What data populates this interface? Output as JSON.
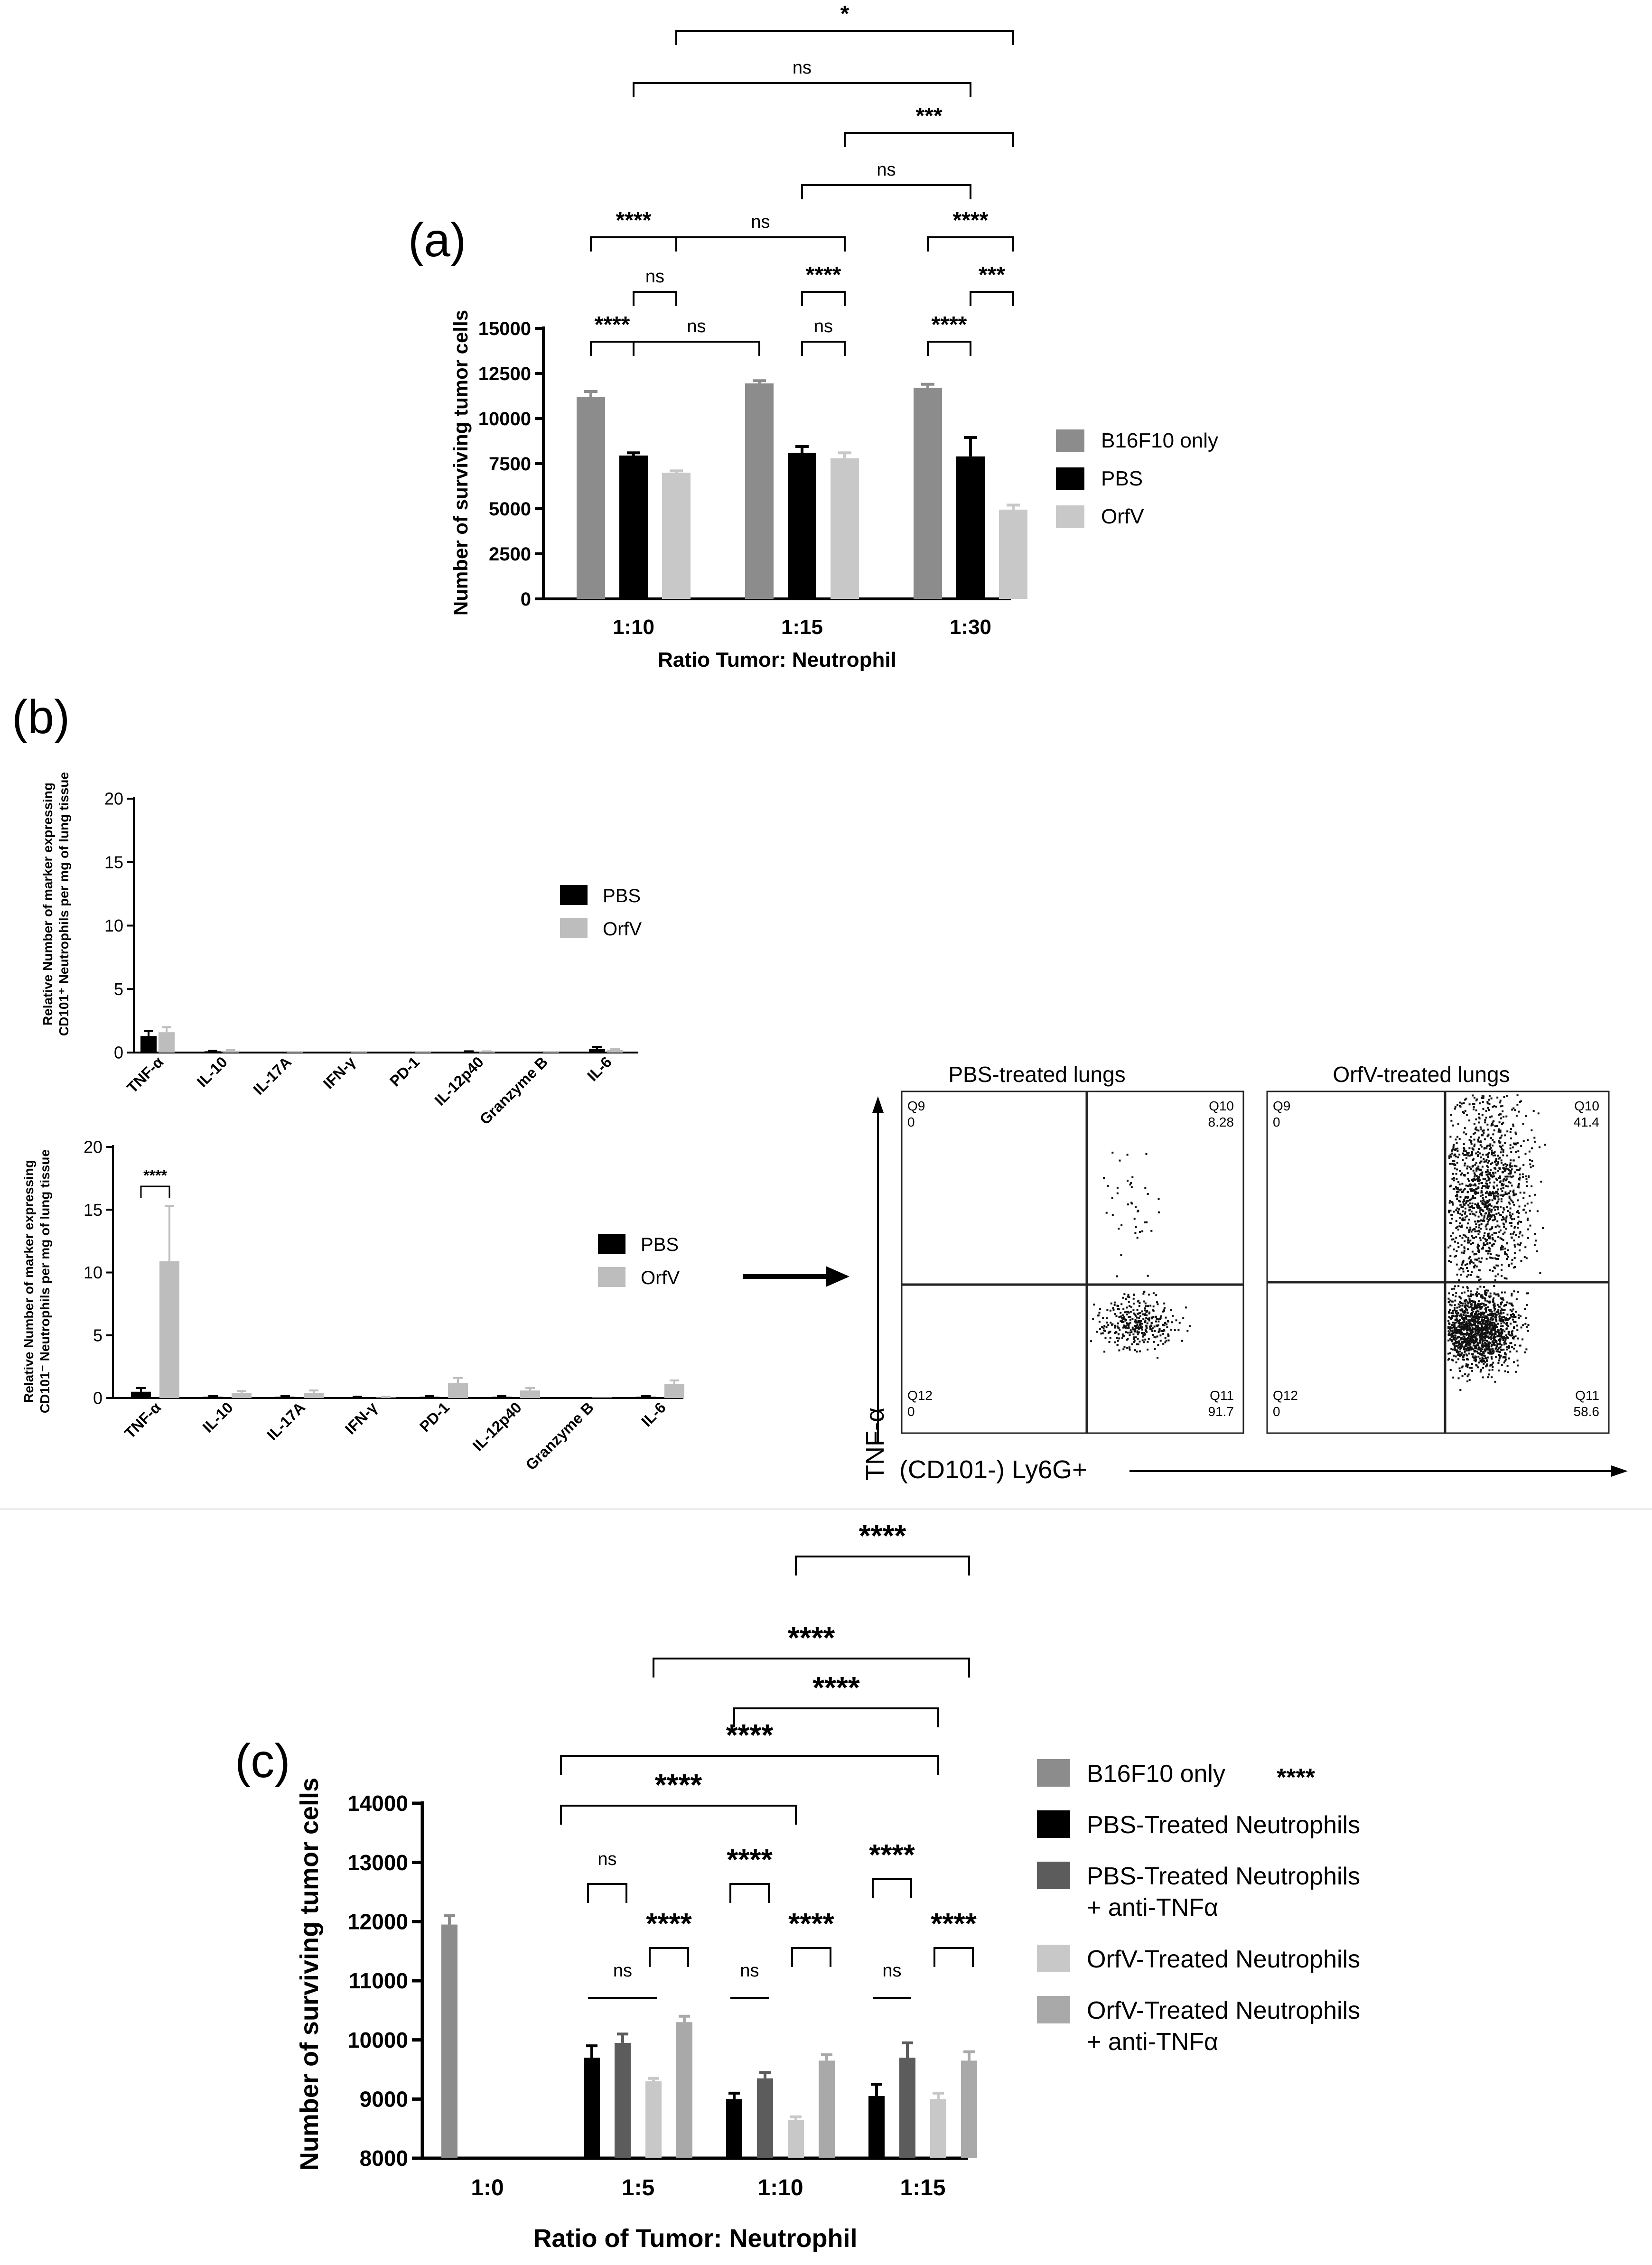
{
  "panels": {
    "a": {
      "panel_label": "(a)",
      "legend": [
        {
          "label": "B16F10 only",
          "color": "#8c8c8c"
        },
        {
          "label": "PBS",
          "color": "#000000"
        },
        {
          "label": "OrfV",
          "color": "#c8c8c8"
        }
      ]
    },
    "b": {
      "panel_label": "(b)",
      "top_legend": [
        {
          "label": "PBS",
          "color": "#000000"
        },
        {
          "label": "OrfV",
          "color": "#bdbdbd"
        }
      ],
      "bottom_legend": [
        {
          "label": "PBS",
          "color": "#000000"
        },
        {
          "label": "OrfV",
          "color": "#bdbdbd"
        }
      ],
      "flow": {
        "left_title": "PBS-treated lungs",
        "right_title": "OrfV-treated lungs",
        "y_axis_label": "TNF-α",
        "x_axis_label": "(CD101-) Ly6G+",
        "left_quadrants": {
          "q9": "Q9",
          "q9v": "0",
          "q10": "Q10",
          "q10v": "8.28",
          "q11": "Q11",
          "q11v": "91.7",
          "q12": "Q12",
          "q12v": "0"
        },
        "right_quadrants": {
          "q9": "Q9",
          "q9v": "0",
          "q10": "Q10",
          "q10v": "41.4",
          "q11": "Q11",
          "q11v": "58.6",
          "q12": "Q12",
          "q12v": "0"
        }
      }
    },
    "c": {
      "panel_label": "(c)",
      "legend": [
        {
          "label": "B16F10 only",
          "label2": "",
          "suffix": "****",
          "color": "#8c8c8c"
        },
        {
          "label": "PBS-Treated Neutrophils",
          "label2": "",
          "suffix": "",
          "color": "#000000"
        },
        {
          "label": "PBS-Treated Neutrophils",
          "label2": "+ anti-TNFα",
          "suffix": "",
          "color": "#5c5c5c"
        },
        {
          "label": "OrfV-Treated Neutrophils",
          "label2": "",
          "suffix": "",
          "color": "#c8c8c8"
        },
        {
          "label": "OrfV-Treated Neutrophils",
          "label2": "+ anti-TNFα",
          "suffix": "",
          "color": "#a9a9a9"
        }
      ]
    }
  },
  "chart_data": [
    {
      "type": "bar",
      "ylabel": "Number of surviving tumor cells",
      "xlabel": "Ratio Tumor: Neutrophil",
      "categories": [
        "1:10",
        "1:15",
        "1:30"
      ],
      "ylim": [
        0,
        15000
      ],
      "yticks": [
        0,
        2500,
        5000,
        7500,
        10000,
        12500,
        15000
      ],
      "series": [
        {
          "name": "B16F10 only",
          "values": [
            11200,
            11950,
            11700
          ],
          "errors": [
            300,
            150,
            200
          ]
        },
        {
          "name": "PBS",
          "values": [
            7950,
            8100,
            7900
          ],
          "errors": [
            150,
            350,
            1050
          ]
        },
        {
          "name": "OrfV",
          "values": [
            7000,
            7800,
            4950
          ],
          "errors": [
            100,
            300,
            250
          ]
        }
      ],
      "annotations": [
        {
          "text": "****",
          "left": [
            0,
            0
          ],
          "right": [
            0,
            1
          ]
        },
        {
          "text": "ns",
          "left": [
            0,
            1
          ],
          "right": [
            1,
            0
          ]
        },
        {
          "text": "ns",
          "left": [
            1,
            1
          ],
          "right": [
            1,
            2
          ]
        },
        {
          "text": "****",
          "left": [
            2,
            0
          ],
          "right": [
            2,
            1
          ]
        },
        {
          "text": "ns",
          "left": [
            0,
            1
          ],
          "right": [
            0,
            2
          ]
        },
        {
          "text": "****",
          "left": [
            1,
            1
          ],
          "right": [
            1,
            2
          ]
        },
        {
          "text": "***",
          "left": [
            2,
            1
          ],
          "right": [
            2,
            2
          ]
        },
        {
          "text": "****",
          "left": [
            0,
            0
          ],
          "right": [
            0,
            2
          ]
        },
        {
          "text": "ns",
          "left": [
            0,
            2
          ],
          "right": [
            1,
            2
          ]
        },
        {
          "text": "****",
          "left": [
            2,
            0
          ],
          "right": [
            2,
            2
          ]
        },
        {
          "text": "ns",
          "left": [
            1,
            1
          ],
          "right": [
            2,
            1
          ]
        },
        {
          "text": "***",
          "left": [
            1,
            2
          ],
          "right": [
            2,
            2
          ]
        },
        {
          "text": "ns",
          "left": [
            0,
            1
          ],
          "right": [
            2,
            1
          ]
        },
        {
          "text": "*",
          "left": [
            0,
            2
          ],
          "right": [
            2,
            2
          ]
        }
      ]
    },
    {
      "type": "bar",
      "ylabel": "Relative Number of marker expressing CD101⁺ Neutrophils per mg of lung tissue",
      "categories": [
        "TNF-α",
        "IL-10",
        "IL-17A",
        "IFN-γ",
        "PD-1",
        "IL-12p40",
        "Granzyme B",
        "IL-6"
      ],
      "ylim": [
        0,
        20
      ],
      "yticks": [
        0,
        5,
        10,
        15,
        20
      ],
      "series": [
        {
          "name": "PBS",
          "values": [
            1.3,
            0.1,
            0.05,
            0.05,
            0.05,
            0.05,
            0.05,
            0.3
          ],
          "errors": [
            0.4,
            0.05,
            0,
            0,
            0,
            0.05,
            0,
            0.15
          ]
        },
        {
          "name": "OrfV",
          "values": [
            1.6,
            0.15,
            0.05,
            0.05,
            0.05,
            0.05,
            0.05,
            0.2
          ],
          "errors": [
            0.4,
            0.05,
            0,
            0,
            0,
            0.05,
            0,
            0.1
          ]
        }
      ]
    },
    {
      "type": "bar",
      "ylabel": "Relative Number of marker expressing CD101⁻ Neutrophils per mg of lung tissue",
      "categories": [
        "TNF-α",
        "IL-10",
        "IL-17A",
        "IFN-γ",
        "PD-1",
        "IL-12p40",
        "Granzyme B",
        "IL-6"
      ],
      "ylim": [
        0,
        20
      ],
      "yticks": [
        0,
        5,
        10,
        15,
        20
      ],
      "series": [
        {
          "name": "PBS",
          "values": [
            0.5,
            0.1,
            0.1,
            0.05,
            0.1,
            0.1,
            0.05,
            0.1
          ],
          "errors": [
            0.3,
            0.05,
            0.05,
            0.05,
            0.05,
            0.05,
            0,
            0.05
          ]
        },
        {
          "name": "OrfV",
          "values": [
            10.9,
            0.4,
            0.4,
            0.05,
            1.2,
            0.6,
            0.05,
            1.1
          ],
          "errors": [
            4.4,
            0.15,
            0.2,
            0.05,
            0.4,
            0.2,
            0,
            0.3
          ]
        }
      ],
      "annotations": [
        {
          "text": "****",
          "category": "TNF-α"
        }
      ]
    },
    {
      "type": "bar",
      "ylabel": "Number of surviving tumor cells",
      "xlabel": "Ratio of Tumor: Neutrophil",
      "categories": [
        "1:0",
        "1:5",
        "1:10",
        "1:15"
      ],
      "ylim": [
        8000,
        14000
      ],
      "yticks": [
        8000,
        9000,
        10000,
        11000,
        12000,
        13000,
        14000
      ],
      "series": [
        {
          "name": "B16F10 only",
          "values": [
            11950,
            null,
            null,
            null
          ],
          "errors": [
            150,
            0,
            0,
            0
          ]
        },
        {
          "name": "PBS-Treated Neutrophils",
          "values": [
            null,
            9700,
            9000,
            9050
          ],
          "errors": [
            0,
            200,
            100,
            200
          ]
        },
        {
          "name": "PBS-Treated Neutrophils + anti-TNFα",
          "values": [
            null,
            9950,
            9350,
            9700
          ],
          "errors": [
            0,
            150,
            100,
            250
          ]
        },
        {
          "name": "OrfV-Treated Neutrophils",
          "values": [
            null,
            9300,
            8650,
            9000
          ],
          "errors": [
            0,
            50,
            50,
            100
          ]
        },
        {
          "name": "OrfV-Treated Neutrophils + anti-TNFα",
          "values": [
            null,
            10300,
            9650,
            9650
          ],
          "errors": [
            0,
            100,
            100,
            150
          ]
        }
      ],
      "annotations": [
        {
          "text": "ns",
          "cat": 1,
          "left": 1,
          "right": 3,
          "style": "line"
        },
        {
          "text": "ns",
          "cat": 1,
          "left": 1,
          "right": 2
        },
        {
          "text": "****",
          "cat": 1,
          "left": 3,
          "right": 4
        },
        {
          "text": "ns",
          "cat": 2,
          "left": 1,
          "right": 2,
          "style": "line"
        },
        {
          "text": "****",
          "cat": 2,
          "left": 1,
          "right": 2
        },
        {
          "text": "****",
          "cat": 2,
          "left": 3,
          "right": 4
        },
        {
          "text": "ns",
          "cat": 3,
          "left": 1,
          "right": 2,
          "style": "line"
        },
        {
          "text": "****",
          "cat": 3,
          "left": 1,
          "right": 2
        },
        {
          "text": "****",
          "cat": 3,
          "left": 3,
          "right": 4
        },
        {
          "text": "****",
          "between": [
            [
              1,
              0
            ],
            [
              2,
              3
            ]
          ]
        },
        {
          "text": "****",
          "between": [
            [
              1,
              0
            ],
            [
              3,
              3
            ]
          ]
        },
        {
          "text": "****",
          "between": [
            [
              2,
              1
            ],
            [
              3,
              3
            ]
          ]
        },
        {
          "text": "****",
          "between": [
            [
              1,
              3
            ],
            [
              3,
              4
            ]
          ]
        },
        {
          "text": "****",
          "between": [
            [
              2,
              3
            ],
            [
              3,
              4
            ]
          ]
        }
      ]
    }
  ]
}
